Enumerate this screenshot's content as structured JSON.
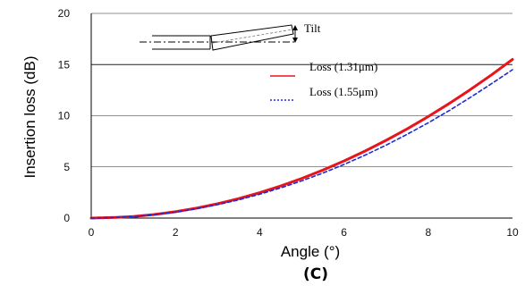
{
  "chart_data": {
    "type": "line",
    "xlabel": "Angle (°)",
    "ylabel": "Insertion loss (dB)",
    "caption": "(C)",
    "xlim": [
      0,
      10
    ],
    "ylim": [
      0,
      20
    ],
    "xticks": [
      "0",
      "2",
      "4",
      "6",
      "8",
      "10"
    ],
    "yticks": [
      "0",
      "5",
      "10",
      "15",
      "20"
    ],
    "grid": "horizontal",
    "legend_position": "center-right",
    "inset_label": "Tilt",
    "series": [
      {
        "name": "Loss (1.31μm)",
        "color": "#e8141c",
        "style": "solid",
        "x": [
          0,
          0.5,
          1,
          1.5,
          2,
          2.5,
          3,
          3.5,
          4,
          4.5,
          5,
          5.5,
          6,
          6.5,
          7,
          7.5,
          8,
          8.5,
          9,
          9.5,
          10
        ],
        "y": [
          0,
          0.05,
          0.15,
          0.35,
          0.62,
          0.97,
          1.4,
          1.9,
          2.48,
          3.14,
          3.88,
          4.69,
          5.58,
          6.55,
          7.6,
          8.72,
          9.92,
          11.2,
          12.56,
          13.99,
          15.5
        ]
      },
      {
        "name": "Loss (1.55μm)",
        "color": "#1e2bd6",
        "style": "dotted",
        "x": [
          0,
          0.5,
          1,
          1.5,
          2,
          2.5,
          3,
          3.5,
          4,
          4.5,
          5,
          5.5,
          6,
          6.5,
          7,
          7.5,
          8,
          8.5,
          9,
          9.5,
          10
        ],
        "y": [
          0,
          0.05,
          0.14,
          0.33,
          0.58,
          0.91,
          1.31,
          1.78,
          2.33,
          2.95,
          3.64,
          4.4,
          5.24,
          6.15,
          7.13,
          8.19,
          9.31,
          10.51,
          11.79,
          13.13,
          14.5
        ]
      }
    ]
  }
}
